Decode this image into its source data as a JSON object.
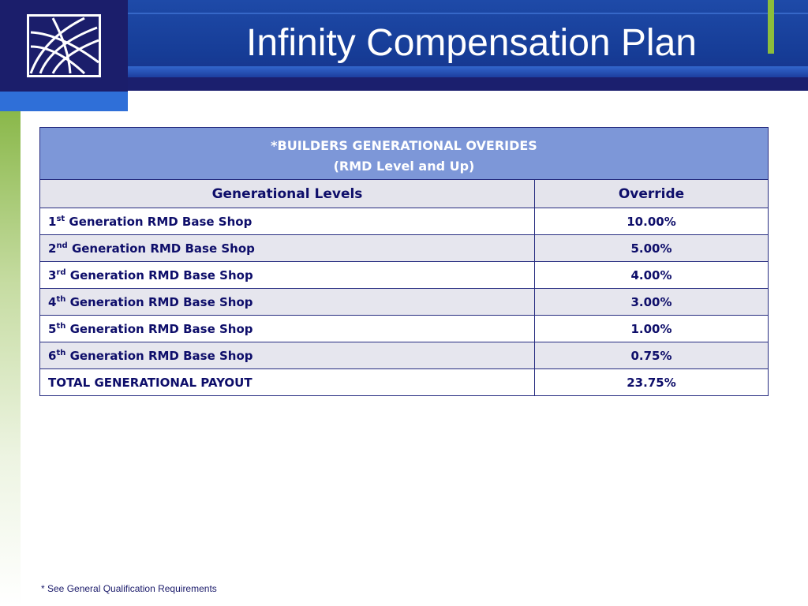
{
  "slide": {
    "title": "Infinity Compensation Plan",
    "footnote": "* See General Qualification Requirements",
    "colors": {
      "header_blue": "#1e4aa8",
      "logo_navy": "#1b1e6b",
      "table_header_blue": "#7d97d8",
      "accent_green": "#8cbd3c",
      "text_navy": "#0e0e6a"
    }
  },
  "table": {
    "heading_line1": "*BUILDERS GENERATIONAL OVERIDES",
    "heading_line2": "(RMD Level and Up)",
    "col_levels": "Generational Levels",
    "col_override": "Override",
    "rows": [
      {
        "num": "1",
        "sup": "st",
        "label": " Generation RMD Base Shop",
        "override": "10.00%"
      },
      {
        "num": "2",
        "sup": "nd",
        "label": " Generation RMD Base Shop",
        "override": "5.00%"
      },
      {
        "num": "3",
        "sup": "rd",
        "label": " Generation RMD Base Shop",
        "override": "4.00%"
      },
      {
        "num": "4",
        "sup": "th",
        "label": " Generation RMD Base Shop",
        "override": "3.00%"
      },
      {
        "num": "5",
        "sup": "th",
        "label": " Generation RMD Base Shop",
        "override": "1.00%"
      },
      {
        "num": "6",
        "sup": "th",
        "label": " Generation RMD Base Shop",
        "override": "0.75%"
      }
    ],
    "total_label": "TOTAL GENERATIONAL PAYOUT",
    "total_value": "23.75%"
  }
}
